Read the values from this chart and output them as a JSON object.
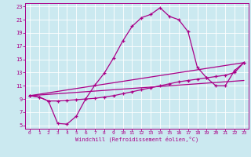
{
  "xlabel": "Windchill (Refroidissement éolien,°C)",
  "bg_color": "#cbe9f0",
  "line_color": "#aa0088",
  "xlim": [
    -0.5,
    23.5
  ],
  "ylim": [
    4.5,
    23.5
  ],
  "yticks": [
    5,
    7,
    9,
    11,
    13,
    15,
    17,
    19,
    21,
    23
  ],
  "xticks": [
    0,
    1,
    2,
    3,
    4,
    5,
    6,
    7,
    8,
    9,
    10,
    11,
    12,
    13,
    14,
    15,
    16,
    17,
    18,
    19,
    20,
    21,
    22,
    23
  ],
  "curve1_x": [
    0,
    1,
    2,
    3,
    4,
    5,
    6,
    7,
    8,
    9,
    10,
    11,
    12,
    13,
    14,
    15,
    16,
    17,
    18,
    19,
    20,
    21,
    22,
    23
  ],
  "curve1_y": [
    9.5,
    9.3,
    8.7,
    5.3,
    5.2,
    6.4,
    9.0,
    11.1,
    12.9,
    15.2,
    17.8,
    20.0,
    21.3,
    21.8,
    22.8,
    21.5,
    21.0,
    19.2,
    13.8,
    12.2,
    11.0,
    11.0,
    13.3,
    14.5
  ],
  "curve2_x": [
    0,
    1,
    2,
    3,
    4,
    5,
    6,
    7,
    8,
    9,
    10,
    11,
    12,
    13,
    14,
    15,
    16,
    17,
    18,
    19,
    20,
    21,
    22,
    23
  ],
  "curve2_y": [
    9.5,
    9.3,
    8.7,
    8.7,
    8.8,
    8.9,
    9.0,
    9.1,
    9.3,
    9.5,
    9.8,
    10.1,
    10.4,
    10.7,
    11.0,
    11.3,
    11.6,
    11.8,
    12.0,
    12.2,
    12.4,
    12.6,
    13.0,
    14.5
  ],
  "curve3_x": [
    0,
    23
  ],
  "curve3_y": [
    9.5,
    14.5
  ],
  "curve4_x": [
    0,
    23
  ],
  "curve4_y": [
    9.5,
    11.8
  ]
}
